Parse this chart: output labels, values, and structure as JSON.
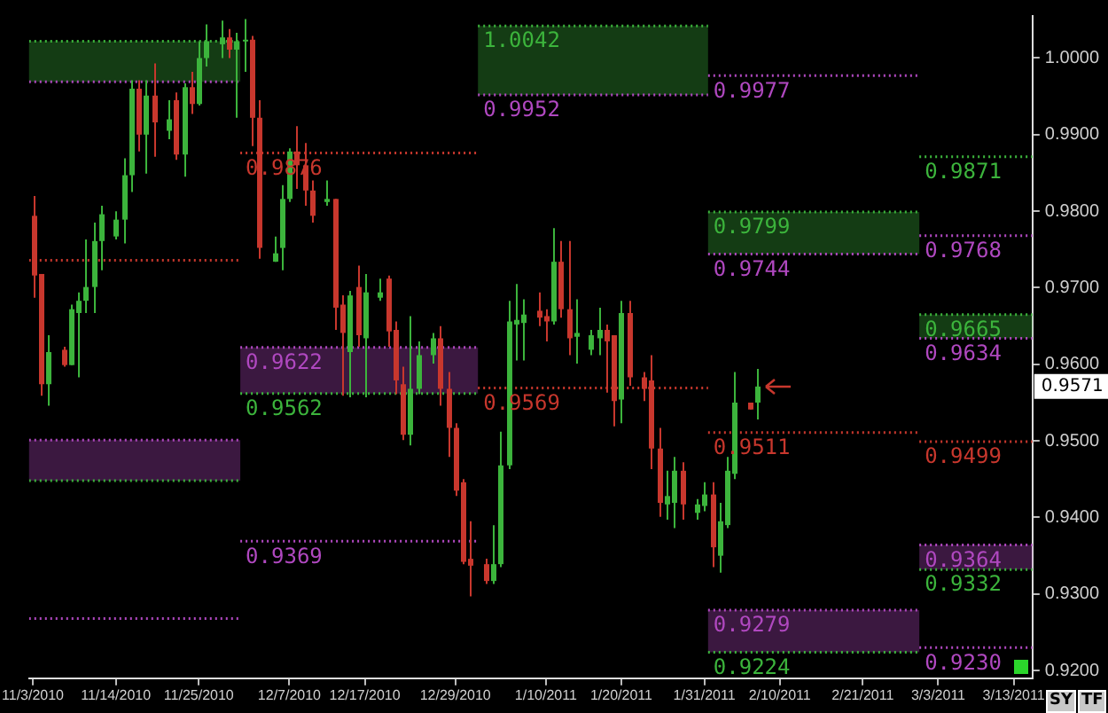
{
  "chart_data": {
    "type": "candlestick",
    "x": [
      "2010-11-03",
      "2010-11-04",
      "2010-11-05",
      "2010-11-07",
      "2010-11-08",
      "2010-11-09",
      "2010-11-10",
      "2010-11-11",
      "2010-11-12",
      "2010-11-14",
      "2010-11-15",
      "2010-11-16",
      "2010-11-17",
      "2010-11-18",
      "2010-11-19",
      "2010-11-21",
      "2010-11-22",
      "2010-11-23",
      "2010-11-24",
      "2010-11-25",
      "2010-11-26",
      "2010-11-28",
      "2010-11-29",
      "2010-11-30",
      "2010-12-01",
      "2010-12-02",
      "2010-12-03",
      "2010-12-05",
      "2010-12-06",
      "2010-12-07",
      "2010-12-08",
      "2010-12-09",
      "2010-12-10",
      "2010-12-12",
      "2010-12-13",
      "2010-12-14",
      "2010-12-15",
      "2010-12-16",
      "2010-12-17",
      "2010-12-19",
      "2010-12-20",
      "2010-12-21",
      "2010-12-22",
      "2010-12-23",
      "2010-12-24",
      "2010-12-26",
      "2010-12-27",
      "2010-12-28",
      "2010-12-29",
      "2010-12-30",
      "2010-12-31",
      "2011-01-02",
      "2011-01-03",
      "2011-01-04",
      "2011-01-05",
      "2011-01-06",
      "2011-01-07",
      "2011-01-09",
      "2011-01-10",
      "2011-01-11",
      "2011-01-12",
      "2011-01-13",
      "2011-01-14",
      "2011-01-16",
      "2011-01-17",
      "2011-01-18",
      "2011-01-19",
      "2011-01-20",
      "2011-01-21",
      "2011-01-23",
      "2011-01-24",
      "2011-01-25",
      "2011-01-26",
      "2011-01-27",
      "2011-01-28",
      "2011-01-30",
      "2011-01-31",
      "2011-02-01",
      "2011-02-02",
      "2011-02-03",
      "2011-02-04",
      "2011-02-06",
      "2011-02-07"
    ],
    "ohlc": [
      [
        0.9794,
        0.982,
        0.9687,
        0.9716
      ],
      [
        0.9718,
        0.9718,
        0.9559,
        0.9574
      ],
      [
        0.9574,
        0.9638,
        0.9546,
        0.9616
      ],
      [
        0.9619,
        0.9623,
        0.9597,
        0.9599
      ],
      [
        0.9599,
        0.9678,
        0.9599,
        0.9672
      ],
      [
        0.9667,
        0.9694,
        0.9583,
        0.9683
      ],
      [
        0.9683,
        0.9763,
        0.9667,
        0.9701
      ],
      [
        0.9701,
        0.9785,
        0.9667,
        0.9761
      ],
      [
        0.9761,
        0.9807,
        0.9723,
        0.9796
      ],
      [
        0.9767,
        0.98,
        0.9763,
        0.9789
      ],
      [
        0.9789,
        0.9869,
        0.9758,
        0.9847
      ],
      [
        0.9847,
        0.9971,
        0.9825,
        0.996
      ],
      [
        0.996,
        0.9971,
        0.9878,
        0.99
      ],
      [
        0.99,
        0.9971,
        0.9849,
        0.9951
      ],
      [
        0.9951,
        0.9993,
        0.9871,
        0.9916
      ],
      [
        0.9905,
        0.9945,
        0.9894,
        0.992
      ],
      [
        0.9945,
        0.9955,
        0.9867,
        0.9874
      ],
      [
        0.9874,
        0.9967,
        0.9845,
        0.9962
      ],
      [
        0.9962,
        0.9982,
        0.9927,
        0.994
      ],
      [
        0.994,
        1.0022,
        0.9938,
        1.0
      ],
      [
        1.0,
        1.0044,
        0.9989,
        1.0022
      ],
      [
        1.0018,
        1.0049,
        1.0,
        1.0027
      ],
      [
        1.0027,
        1.0038,
        1.0,
        1.0011
      ],
      [
        1.0011,
        1.0033,
        0.9922,
        1.0022
      ],
      [
        1.0022,
        1.0051,
        0.9982,
        1.0024
      ],
      [
        1.0024,
        1.0029,
        0.9885,
        0.9922
      ],
      [
        0.9922,
        0.9945,
        0.9738,
        0.9752
      ],
      [
        0.9734,
        0.9767,
        0.9734,
        0.9745
      ],
      [
        0.9752,
        0.9834,
        0.9723,
        0.9816
      ],
      [
        0.9816,
        0.9882,
        0.9812,
        0.9878
      ],
      [
        0.9878,
        0.9911,
        0.9829,
        0.986
      ],
      [
        0.986,
        0.9889,
        0.9807,
        0.9827
      ],
      [
        0.9827,
        0.984,
        0.9785,
        0.9794
      ],
      [
        0.9812,
        0.984,
        0.9807,
        0.9816
      ],
      [
        0.9816,
        0.9816,
        0.9645,
        0.9674
      ],
      [
        0.9678,
        0.969,
        0.9559,
        0.9641
      ],
      [
        0.9616,
        0.9696,
        0.9557,
        0.969
      ],
      [
        0.9701,
        0.9729,
        0.9623,
        0.9638
      ],
      [
        0.9634,
        0.9718,
        0.9557,
        0.9694
      ],
      [
        0.9687,
        0.9712,
        0.9683,
        0.9694
      ],
      [
        0.9712,
        0.9716,
        0.9623,
        0.9643
      ],
      [
        0.9645,
        0.9656,
        0.9561,
        0.9579
      ],
      [
        0.9574,
        0.9597,
        0.9501,
        0.9508
      ],
      [
        0.9508,
        0.9663,
        0.9494,
        0.9568
      ],
      [
        0.9568,
        0.963,
        0.9561,
        0.9612
      ],
      [
        0.9612,
        0.9641,
        0.9601,
        0.9634
      ],
      [
        0.9634,
        0.965,
        0.9546,
        0.9568
      ],
      [
        0.9568,
        0.959,
        0.9479,
        0.9517
      ],
      [
        0.9517,
        0.9523,
        0.9428,
        0.9435
      ],
      [
        0.9446,
        0.945,
        0.9339,
        0.9342
      ],
      [
        0.9346,
        0.9395,
        0.9297,
        0.9337
      ],
      [
        0.9339,
        0.9346,
        0.9313,
        0.9317
      ],
      [
        0.9317,
        0.939,
        0.9313,
        0.9339
      ],
      [
        0.9339,
        0.9512,
        0.9335,
        0.9468
      ],
      [
        0.9468,
        0.9683,
        0.9463,
        0.9656
      ],
      [
        0.9652,
        0.9705,
        0.9605,
        0.9658
      ],
      [
        0.9654,
        0.9685,
        0.9605,
        0.9665
      ],
      [
        0.967,
        0.9694,
        0.965,
        0.9661
      ],
      [
        0.9663,
        0.9672,
        0.963,
        0.9656
      ],
      [
        0.9656,
        0.9778,
        0.9652,
        0.9734
      ],
      [
        0.9734,
        0.9761,
        0.9661,
        0.9672
      ],
      [
        0.9672,
        0.9761,
        0.9612,
        0.9634
      ],
      [
        0.9636,
        0.9685,
        0.9601,
        0.9641
      ],
      [
        0.9619,
        0.9645,
        0.9612,
        0.9638
      ],
      [
        0.9634,
        0.9674,
        0.9612,
        0.9645
      ],
      [
        0.9645,
        0.9652,
        0.9563,
        0.963
      ],
      [
        0.9638,
        0.9638,
        0.9519,
        0.9552
      ],
      [
        0.9554,
        0.9683,
        0.9523,
        0.9667
      ],
      [
        0.9667,
        0.9683,
        0.9572,
        0.9583
      ],
      [
        0.9583,
        0.959,
        0.9552,
        0.9568
      ],
      [
        0.9579,
        0.9612,
        0.9463,
        0.949
      ],
      [
        0.949,
        0.9517,
        0.9401,
        0.9419
      ],
      [
        0.9417,
        0.9461,
        0.9397,
        0.9428
      ],
      [
        0.9419,
        0.9479,
        0.9386,
        0.9461
      ],
      [
        0.9461,
        0.9472,
        0.9397,
        0.9417
      ],
      [
        0.9406,
        0.9424,
        0.9397,
        0.9417
      ],
      [
        0.9415,
        0.9446,
        0.9408,
        0.943
      ],
      [
        0.943,
        0.9446,
        0.9335,
        0.9361
      ],
      [
        0.935,
        0.9419,
        0.9328,
        0.9395
      ],
      [
        0.939,
        0.9479,
        0.9386,
        0.9461
      ],
      [
        0.9457,
        0.959,
        0.945,
        0.955
      ],
      [
        0.955,
        0.955,
        0.9541,
        0.9541
      ],
      [
        0.955,
        0.9594,
        0.9528,
        0.9571
      ]
    ],
    "colors": [
      "#c8372d",
      "#c8372d",
      "#3cb43c",
      "#c8372d",
      "#3cb43c",
      "#3cb43c",
      "#3cb43c",
      "#3cb43c",
      "#3cb43c",
      "#3cb43c",
      "#3cb43c",
      "#3cb43c",
      "#c8372d",
      "#3cb43c",
      "#c8372d",
      "#3cb43c",
      "#c8372d",
      "#3cb43c",
      "#c8372d",
      "#3cb43c",
      "#3cb43c",
      "#3cb43c",
      "#c8372d",
      "#3cb43c",
      "#3cb43c",
      "#c8372d",
      "#c8372d",
      "#3cb43c",
      "#3cb43c",
      "#3cb43c",
      "#c8372d",
      "#c8372d",
      "#c8372d",
      "#3cb43c",
      "#c8372d",
      "#c8372d",
      "#3cb43c",
      "#c8372d",
      "#3cb43c",
      "#3cb43c",
      "#c8372d",
      "#c8372d",
      "#c8372d",
      "#3cb43c",
      "#3cb43c",
      "#3cb43c",
      "#c8372d",
      "#c8372d",
      "#c8372d",
      "#c8372d",
      "#c8372d",
      "#c8372d",
      "#3cb43c",
      "#3cb43c",
      "#3cb43c",
      "#3cb43c",
      "#3cb43c",
      "#c8372d",
      "#c8372d",
      "#3cb43c",
      "#c8372d",
      "#c8372d",
      "#3cb43c",
      "#3cb43c",
      "#3cb43c",
      "#c8372d",
      "#c8372d",
      "#3cb43c",
      "#c8372d",
      "#c8372d",
      "#c8372d",
      "#c8372d",
      "#3cb43c",
      "#3cb43c",
      "#c8372d",
      "#3cb43c",
      "#3cb43c",
      "#c8372d",
      "#3cb43c",
      "#3cb43c",
      "#3cb43c",
      "#c8372d",
      "#3cb43c"
    ],
    "xlim": [
      "2010-11-02T12:00",
      "2011-03-15T12:00"
    ],
    "xticks": [
      {
        "value": "2010-11-03",
        "label": "11/3/2010"
      },
      {
        "value": "2010-11-14",
        "label": "11/14/2010"
      },
      {
        "value": "2010-11-25",
        "label": "11/25/2010"
      },
      {
        "value": "2010-12-07",
        "label": "12/7/2010"
      },
      {
        "value": "2010-12-17",
        "label": "12/17/2010"
      },
      {
        "value": "2010-12-29",
        "label": "12/29/2010"
      },
      {
        "value": "2011-01-10",
        "label": "1/10/2011"
      },
      {
        "value": "2011-01-20",
        "label": "1/20/2011"
      },
      {
        "value": "2011-01-31",
        "label": "1/31/2011"
      },
      {
        "value": "2011-02-10",
        "label": "2/10/2011"
      },
      {
        "value": "2011-02-21",
        "label": "2/21/2011"
      },
      {
        "value": "2011-03-03",
        "label": "3/3/2011"
      },
      {
        "value": "2011-03-13",
        "label": "3/13/2011"
      }
    ],
    "ylim": [
      0.919,
      1.0055
    ],
    "yticks": [
      {
        "value": 0.92,
        "label": "0.9200"
      },
      {
        "value": 0.93,
        "label": "0.9300"
      },
      {
        "value": 0.94,
        "label": "0.9400"
      },
      {
        "value": 0.95,
        "label": "0.9500"
      },
      {
        "value": 0.96,
        "label": "0.9600"
      },
      {
        "value": 0.97,
        "label": "0.9700"
      },
      {
        "value": 0.98,
        "label": "0.9800"
      },
      {
        "value": 0.99,
        "label": "0.9900"
      },
      {
        "value": 1.0,
        "label": "1.0000"
      }
    ],
    "series": [
      {
        "type": "line",
        "color": "#3cb43c",
        "line_style": "dotted",
        "x": [
          "2010-11-02T12:00",
          "2010-11-30T12:00"
        ],
        "values": [
          1.0022,
          1.0022
        ],
        "lower": [
          0.9969,
          0.9969
        ],
        "upper": [
          1.0022,
          1.0022
        ]
      },
      {
        "type": "line",
        "color": "#b048c0",
        "line_style": "dotted",
        "x": [
          "2010-11-02T12:00",
          "2010-11-30T12:00"
        ],
        "values": [
          0.9969,
          0.9969
        ]
      },
      {
        "type": "line",
        "color": "#c8372d",
        "line_style": "dotted",
        "x": [
          "2010-11-02T12:00",
          "2010-11-30T12:00"
        ],
        "values": [
          0.9736,
          0.9736
        ]
      },
      {
        "type": "line",
        "color": "#b048c0",
        "line_style": "dotted",
        "x": [
          "2010-11-02T12:00",
          "2010-11-30T12:00"
        ],
        "values": [
          0.9501,
          0.9501
        ],
        "lower": [
          0.9448,
          0.9448
        ],
        "upper": [
          0.9501,
          0.9501
        ]
      },
      {
        "type": "line",
        "color": "#3cb43c",
        "line_style": "dotted",
        "x": [
          "2010-11-02T12:00",
          "2010-11-30T12:00"
        ],
        "values": [
          0.9448,
          0.9448
        ]
      },
      {
        "type": "line",
        "color": "#b048c0",
        "line_style": "dotted",
        "x": [
          "2010-11-02T12:00",
          "2010-11-30T12:00"
        ],
        "values": [
          0.9268,
          0.9268
        ]
      },
      {
        "type": "line",
        "name": "0.9876",
        "color": "#c8372d",
        "line_style": "dotted",
        "x": [
          "2010-11-30T12:00",
          "2011-01-01"
        ],
        "values": [
          0.9876,
          0.9876
        ]
      },
      {
        "type": "line",
        "name": "0.9622",
        "color": "#b048c0",
        "line_style": "dotted",
        "x": [
          "2010-11-30T12:00",
          "2011-01-01"
        ],
        "values": [
          0.9622,
          0.9622
        ],
        "lower": [
          0.9562,
          0.9562
        ],
        "upper": [
          0.9622,
          0.9622
        ]
      },
      {
        "type": "line",
        "name": "0.9562",
        "color": "#3cb43c",
        "line_style": "dotted",
        "x": [
          "2010-11-30T12:00",
          "2011-01-01"
        ],
        "values": [
          0.9562,
          0.9562
        ]
      },
      {
        "type": "line",
        "name": "0.9369",
        "color": "#b048c0",
        "line_style": "dotted",
        "x": [
          "2010-11-30T12:00",
          "2011-01-01"
        ],
        "values": [
          0.9369,
          0.9369
        ]
      },
      {
        "type": "line",
        "name": "1.0042",
        "color": "#3cb43c",
        "line_style": "dotted",
        "x": [
          "2011-01-01",
          "2011-01-31T12:00"
        ],
        "values": [
          1.0042,
          1.0042
        ],
        "lower": [
          0.9952,
          0.9952
        ],
        "upper": [
          1.0042,
          1.0042
        ]
      },
      {
        "type": "line",
        "name": "0.9952",
        "color": "#b048c0",
        "line_style": "dotted",
        "x": [
          "2011-01-01",
          "2011-01-31T12:00"
        ],
        "values": [
          0.9952,
          0.9952
        ]
      },
      {
        "type": "line",
        "name": "0.9569",
        "color": "#c8372d",
        "line_style": "dotted",
        "x": [
          "2011-01-01",
          "2011-01-31T12:00"
        ],
        "values": [
          0.9569,
          0.9569
        ]
      },
      {
        "type": "line",
        "name": "0.9977",
        "color": "#b048c0",
        "line_style": "dotted",
        "x": [
          "2011-01-31T12:00",
          "2011-02-28T12:00"
        ],
        "values": [
          0.9977,
          0.9977
        ]
      },
      {
        "type": "line",
        "name": "0.9799",
        "color": "#3cb43c",
        "line_style": "dotted",
        "x": [
          "2011-01-31T12:00",
          "2011-02-28T12:00"
        ],
        "values": [
          0.9799,
          0.9799
        ],
        "lower": [
          0.9744,
          0.9744
        ],
        "upper": [
          0.9799,
          0.9799
        ]
      },
      {
        "type": "line",
        "name": "0.9744",
        "color": "#b048c0",
        "line_style": "dotted",
        "x": [
          "2011-01-31T12:00",
          "2011-02-28T12:00"
        ],
        "values": [
          0.9744,
          0.9744
        ]
      },
      {
        "type": "line",
        "name": "0.9511",
        "color": "#c8372d",
        "line_style": "dotted",
        "x": [
          "2011-01-31T12:00",
          "2011-02-28T12:00"
        ],
        "values": [
          0.9511,
          0.9511
        ]
      },
      {
        "type": "line",
        "name": "0.9279",
        "color": "#b048c0",
        "line_style": "dotted",
        "x": [
          "2011-01-31T12:00",
          "2011-02-28T12:00"
        ],
        "values": [
          0.9279,
          0.9279
        ],
        "lower": [
          0.9224,
          0.9224
        ],
        "upper": [
          0.9279,
          0.9279
        ]
      },
      {
        "type": "line",
        "name": "0.9224",
        "color": "#3cb43c",
        "line_style": "dotted",
        "x": [
          "2011-01-31T12:00",
          "2011-02-28T12:00"
        ],
        "values": [
          0.9224,
          0.9224
        ]
      },
      {
        "type": "line",
        "name": "0.9871",
        "color": "#3cb43c",
        "line_style": "dotted",
        "x": [
          "2011-02-28T12:00",
          "2011-03-15T12:00"
        ],
        "values": [
          0.9871,
          0.9871
        ]
      },
      {
        "type": "line",
        "name": "0.9768",
        "color": "#b048c0",
        "line_style": "dotted",
        "x": [
          "2011-02-28T12:00",
          "2011-03-15T12:00"
        ],
        "values": [
          0.9768,
          0.9768
        ]
      },
      {
        "type": "line",
        "name": "0.9665",
        "color": "#3cb43c",
        "line_style": "dotted",
        "x": [
          "2011-02-28T12:00",
          "2011-03-15T12:00"
        ],
        "values": [
          0.9665,
          0.9665
        ],
        "lower": [
          0.9634,
          0.9634
        ],
        "upper": [
          0.9665,
          0.9665
        ]
      },
      {
        "type": "line",
        "name": "0.9634",
        "color": "#b048c0",
        "line_style": "dotted",
        "x": [
          "2011-02-28T12:00",
          "2011-03-15T12:00"
        ],
        "values": [
          0.9634,
          0.9634
        ]
      },
      {
        "type": "line",
        "name": "0.9499",
        "color": "#c8372d",
        "line_style": "dotted",
        "x": [
          "2011-02-28T12:00",
          "2011-03-15T12:00"
        ],
        "values": [
          0.9499,
          0.9499
        ]
      },
      {
        "type": "line",
        "name": "0.9364",
        "color": "#b048c0",
        "line_style": "dotted",
        "x": [
          "2011-02-28T12:00",
          "2011-03-15T12:00"
        ],
        "values": [
          0.9364,
          0.9364
        ],
        "lower": [
          0.9332,
          0.9332
        ],
        "upper": [
          0.9364,
          0.9364
        ]
      },
      {
        "type": "line",
        "name": "0.9332",
        "color": "#3cb43c",
        "line_style": "dotted",
        "x": [
          "2011-02-28T12:00",
          "2011-03-15T12:00"
        ],
        "values": [
          0.9332,
          0.9332
        ]
      },
      {
        "type": "line",
        "name": "0.9230",
        "color": "#b048c0",
        "line_style": "dotted",
        "x": [
          "2011-02-28T12:00",
          "2011-03-15T12:00"
        ],
        "values": [
          0.923,
          0.923
        ]
      }
    ],
    "annotations": [
      "0.9571",
      "SY",
      "TF"
    ]
  }
}
